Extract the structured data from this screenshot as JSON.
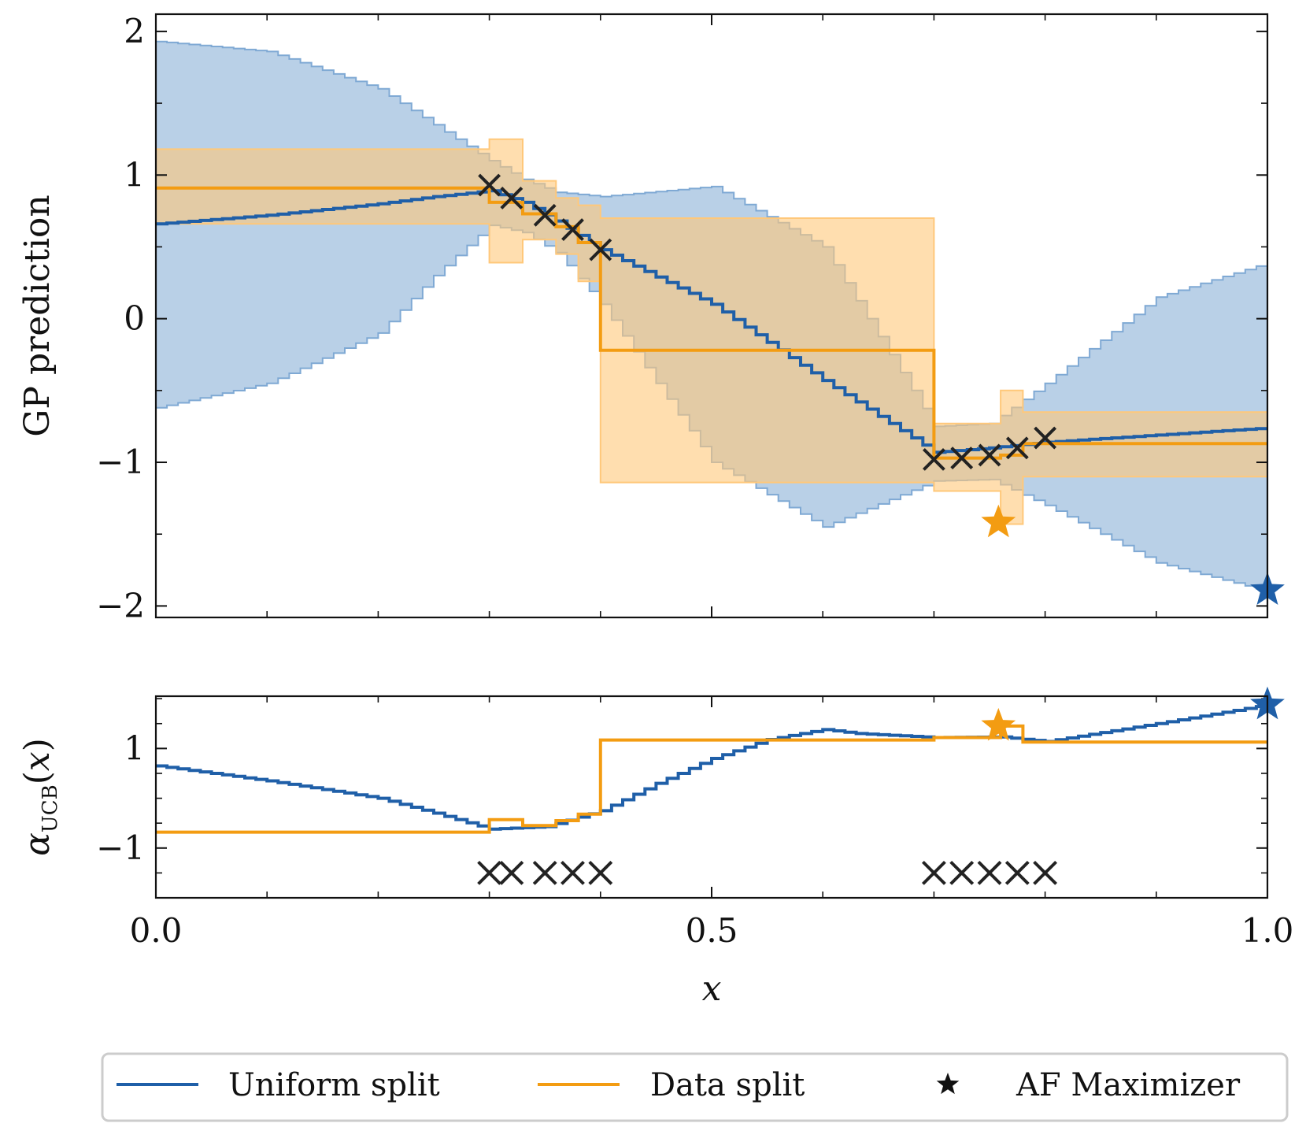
{
  "chart_data": {
    "type": "line",
    "colors": {
      "uniform": "#1f5fa8",
      "uniform_band": "#7fa9d4",
      "data": "#f39c12",
      "data_band": "#ffc87a",
      "observations": "#222222"
    },
    "xlabel": "x",
    "xlim": [
      0.0,
      1.0
    ],
    "x_ticks": [
      0.0,
      0.5,
      1.0
    ],
    "x_tick_labels": [
      "0.0",
      "0.5",
      "1.0"
    ],
    "legend": {
      "position": "bottom-center",
      "entries": [
        {
          "label": "Uniform split",
          "kind": "line",
          "color": "#1f5fa8"
        },
        {
          "label": "Data split",
          "kind": "line",
          "color": "#f39c12"
        },
        {
          "label": "AF Maximizer",
          "kind": "star",
          "color": "#111111"
        }
      ]
    },
    "observations_x": [
      0.3,
      0.32,
      0.35,
      0.375,
      0.4,
      0.7,
      0.725,
      0.75,
      0.775,
      0.8
    ],
    "panels": [
      {
        "name": "gp",
        "ylabel": "GP prediction",
        "ylim": [
          -2.08,
          2.12
        ],
        "y_ticks": [
          -2,
          -1,
          0,
          1,
          2
        ],
        "y_tick_labels": [
          "−2",
          "−1",
          "0",
          "1",
          "2"
        ],
        "observations_y": [
          0.93,
          0.84,
          0.72,
          0.62,
          0.48,
          -0.98,
          -0.97,
          -0.95,
          -0.9,
          -0.83
        ],
        "uniform": {
          "mean_x": [
            0.0,
            0.1,
            0.2,
            0.25,
            0.3,
            0.33,
            0.36,
            0.4,
            0.5,
            0.6,
            0.7,
            0.75,
            0.8,
            0.9,
            1.0
          ],
          "mean_y": [
            0.66,
            0.72,
            0.8,
            0.85,
            0.89,
            0.81,
            0.68,
            0.48,
            0.1,
            -0.43,
            -0.93,
            -0.9,
            -0.86,
            -0.81,
            -0.76
          ],
          "upper": [
            1.93,
            1.86,
            1.6,
            1.35,
            1.1,
            0.97,
            0.88,
            0.85,
            0.92,
            0.5,
            -0.75,
            -0.73,
            -0.45,
            0.15,
            0.39
          ],
          "lower": [
            -0.62,
            -0.45,
            -0.1,
            0.3,
            0.65,
            0.6,
            0.46,
            0.1,
            -1.0,
            -1.45,
            -1.13,
            -1.12,
            -1.3,
            -1.7,
            -1.9
          ]
        },
        "data_split": {
          "segments": [
            {
              "x0": 0.0,
              "x1": 0.3,
              "mean": 0.91,
              "lower": 0.66,
              "upper": 1.18
            },
            {
              "x0": 0.3,
              "x1": 0.33,
              "mean": 0.81,
              "lower": 0.39,
              "upper": 1.25
            },
            {
              "x0": 0.33,
              "x1": 0.36,
              "mean": 0.73,
              "lower": 0.55,
              "upper": 0.96
            },
            {
              "x0": 0.36,
              "x1": 0.38,
              "mean": 0.64,
              "lower": 0.45,
              "upper": 0.84
            },
            {
              "x0": 0.38,
              "x1": 0.4,
              "mean": 0.53,
              "lower": 0.26,
              "upper": 0.79
            },
            {
              "x0": 0.4,
              "x1": 0.7,
              "mean": -0.22,
              "lower": -1.14,
              "upper": 0.7
            },
            {
              "x0": 0.7,
              "x1": 0.76,
              "mean": -0.97,
              "lower": -1.2,
              "upper": -0.73
            },
            {
              "x0": 0.76,
              "x1": 0.78,
              "mean": -0.95,
              "lower": -1.43,
              "upper": -0.5
            },
            {
              "x0": 0.78,
              "x1": 1.0,
              "mean": -0.87,
              "lower": -1.1,
              "upper": -0.65
            }
          ]
        },
        "maximizers": [
          {
            "series": "Data split",
            "x": 0.758,
            "y": -1.42,
            "color": "#f39c12"
          },
          {
            "series": "Uniform split",
            "x": 1.0,
            "y": -1.89,
            "color": "#1f5fa8"
          }
        ]
      },
      {
        "name": "acq",
        "ylabel": "αUCB(x)",
        "ylim": [
          -2.0,
          2.05
        ],
        "y_ticks": [
          -1,
          1
        ],
        "y_tick_labels": [
          "−1",
          "1"
        ],
        "observations_y": -1.5,
        "uniform": {
          "x": [
            0.0,
            0.1,
            0.2,
            0.25,
            0.3,
            0.35,
            0.4,
            0.45,
            0.5,
            0.55,
            0.6,
            0.63,
            0.7,
            0.76,
            0.8,
            0.9,
            1.0
          ],
          "y": [
            0.65,
            0.35,
            0.0,
            -0.3,
            -0.62,
            -0.57,
            -0.25,
            0.3,
            0.8,
            1.18,
            1.38,
            1.3,
            1.22,
            1.23,
            1.14,
            1.5,
            1.88
          ]
        },
        "data_split": {
          "segments": [
            {
              "x0": 0.0,
              "x1": 0.3,
              "y": -0.68
            },
            {
              "x0": 0.3,
              "x1": 0.33,
              "y": -0.43
            },
            {
              "x0": 0.33,
              "x1": 0.36,
              "y": -0.55
            },
            {
              "x0": 0.36,
              "x1": 0.38,
              "y": -0.45
            },
            {
              "x0": 0.38,
              "x1": 0.4,
              "y": -0.32
            },
            {
              "x0": 0.4,
              "x1": 0.7,
              "y": 1.17
            },
            {
              "x0": 0.7,
              "x1": 0.76,
              "y": 1.22
            },
            {
              "x0": 0.76,
              "x1": 0.78,
              "y": 1.45
            },
            {
              "x0": 0.78,
              "x1": 1.0,
              "y": 1.13
            }
          ]
        },
        "maximizers": [
          {
            "series": "Data split",
            "x": 0.758,
            "y": 1.45,
            "color": "#f39c12"
          },
          {
            "series": "Uniform split",
            "x": 1.0,
            "y": 1.88,
            "color": "#1f5fa8"
          }
        ]
      }
    ]
  }
}
